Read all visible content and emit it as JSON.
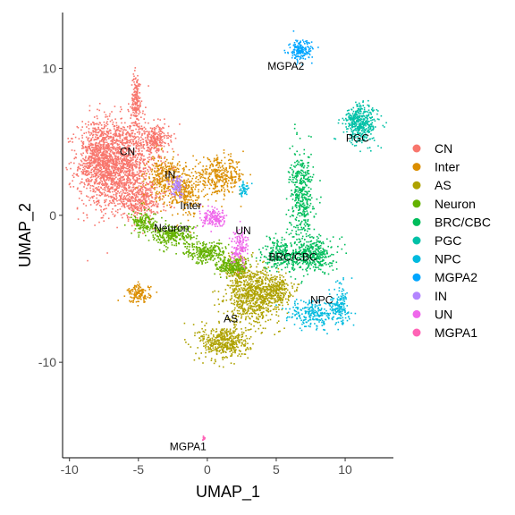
{
  "chart_data": {
    "type": "scatter",
    "xlabel": "UMAP_1",
    "ylabel": "UMAP_2",
    "xlim": [
      -10.5,
      13.5
    ],
    "ylim": [
      -16.5,
      13.8
    ],
    "x_ticks": [
      -10,
      -5,
      0,
      5,
      10
    ],
    "y_ticks": [
      -10,
      0,
      10
    ],
    "grid": false,
    "legend_position": "right",
    "series": [
      {
        "name": "CN",
        "color": "#F8766D",
        "label": "CN",
        "label_pos": [
          -5.8,
          4.3
        ],
        "blobs": [
          [
            -6.6,
            3.5,
            2.3,
            2.6,
            1700
          ],
          [
            -7.9,
            4.2,
            1.0,
            2.0,
            400
          ],
          [
            -5.2,
            7.8,
            0.3,
            1.6,
            180
          ],
          [
            -3.8,
            5.2,
            0.8,
            0.8,
            220
          ],
          [
            -4.8,
            1.0,
            1.6,
            1.0,
            300
          ]
        ]
      },
      {
        "name": "Inter",
        "color": "#DB8E00",
        "label": "Inter",
        "label_pos": [
          -1.2,
          0.6
        ],
        "blobs": [
          [
            0.8,
            2.7,
            1.6,
            1.0,
            350
          ],
          [
            -3.2,
            2.6,
            1.0,
            1.2,
            280
          ],
          [
            -1.6,
            1.6,
            0.8,
            1.4,
            220
          ],
          [
            -5.0,
            -5.3,
            0.7,
            0.5,
            140
          ]
        ]
      },
      {
        "name": "AS",
        "color": "#AEA200",
        "label": "AS",
        "label_pos": [
          1.7,
          -7.1
        ],
        "blobs": [
          [
            3.3,
            -5.4,
            1.6,
            1.5,
            750
          ],
          [
            1.2,
            -8.6,
            1.5,
            1.0,
            450
          ],
          [
            2.1,
            -3.6,
            0.7,
            1.0,
            160
          ],
          [
            5.0,
            -5.0,
            0.9,
            0.8,
            200
          ]
        ]
      },
      {
        "name": "Neuron",
        "color": "#64B200",
        "label": "Neuron",
        "label_pos": [
          -2.6,
          -0.9
        ],
        "blobs": [
          [
            -2.6,
            -1.3,
            1.4,
            0.6,
            280
          ],
          [
            -0.2,
            -2.5,
            1.2,
            0.6,
            250
          ],
          [
            1.8,
            -3.4,
            1.0,
            0.5,
            200
          ],
          [
            -4.6,
            -0.5,
            0.8,
            0.6,
            150
          ]
        ]
      },
      {
        "name": "BRC/CBC",
        "color": "#00BD5C",
        "label": "BRC/CBC",
        "label_pos": [
          6.2,
          -2.9
        ],
        "blobs": [
          [
            6.8,
            1.4,
            0.7,
            2.4,
            420
          ],
          [
            7.5,
            -2.6,
            1.3,
            1.0,
            400
          ],
          [
            5.2,
            -2.6,
            1.0,
            0.9,
            240
          ]
        ]
      },
      {
        "name": "PGC",
        "color": "#00C1A7",
        "label": "PGC",
        "label_pos": [
          10.9,
          5.2
        ],
        "blobs": [
          [
            11.1,
            6.3,
            1.0,
            1.1,
            420
          ]
        ]
      },
      {
        "name": "NPC",
        "color": "#00BADE",
        "label": "NPC",
        "label_pos": [
          8.3,
          -5.8
        ],
        "blobs": [
          [
            7.8,
            -6.6,
            1.8,
            0.8,
            260
          ],
          [
            9.6,
            -6.0,
            0.5,
            1.2,
            120
          ],
          [
            2.6,
            1.8,
            0.3,
            0.4,
            40
          ]
        ]
      },
      {
        "name": "MGPA2",
        "color": "#00A6FF",
        "label": "MGPA2",
        "label_pos": [
          5.7,
          10.1
        ],
        "blobs": [
          [
            6.7,
            11.2,
            0.7,
            0.6,
            170
          ]
        ]
      },
      {
        "name": "IN",
        "color": "#B385FF",
        "label": "IN",
        "label_pos": [
          -2.7,
          2.7
        ],
        "blobs": [
          [
            -2.2,
            2.0,
            0.4,
            0.6,
            80
          ]
        ]
      },
      {
        "name": "UN",
        "color": "#EF67EB",
        "label": "UN",
        "label_pos": [
          2.6,
          -1.1
        ],
        "blobs": [
          [
            0.5,
            -0.2,
            0.8,
            0.5,
            150
          ],
          [
            2.3,
            -2.0,
            0.5,
            1.0,
            140
          ]
        ]
      },
      {
        "name": "MGPA1",
        "color": "#FF63B6",
        "label": "MGPA1",
        "label_pos": [
          -1.4,
          -15.8
        ],
        "blobs": [
          [
            -0.3,
            -15.1,
            0.1,
            0.12,
            14
          ]
        ]
      }
    ]
  }
}
